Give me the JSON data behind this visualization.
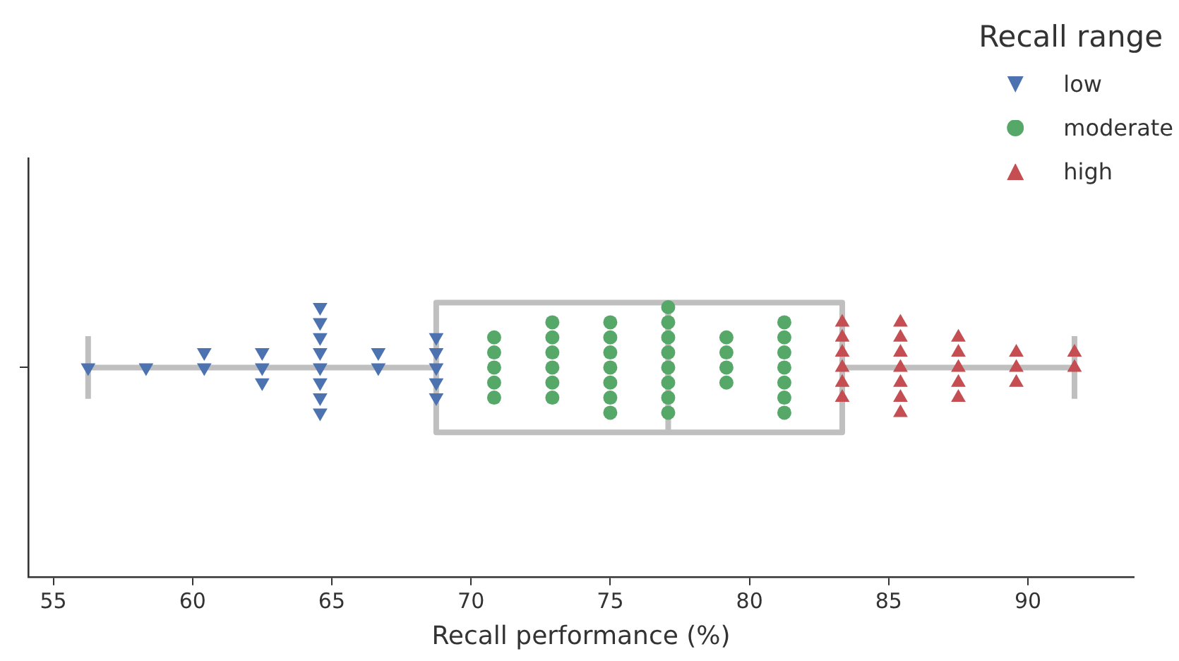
{
  "chart_data": {
    "type": "box",
    "orientation": "horizontal",
    "xlabel": "Recall performance (%)",
    "legend_title": "Recall range",
    "legend": "top right",
    "grid": false,
    "categories": [
      null
    ],
    "boxes": [
      {
        "low": 56.25,
        "q1": 68.75,
        "median": 77.08,
        "q3": 83.33,
        "high": 91.67
      }
    ],
    "color": "#bfbfbf",
    "xlim": [
      54.1,
      93.8
    ],
    "xticks": [
      55,
      60,
      65,
      70,
      75,
      80,
      85,
      90
    ],
    "series": [
      {
        "name": "low",
        "type": "scatter",
        "marker": "triangle-down",
        "color": "#4c72b0",
        "x": [
          null,
          null,
          null,
          null,
          null,
          null,
          null,
          null,
          null,
          null,
          null,
          null,
          null,
          null,
          null,
          null,
          null,
          null,
          null,
          null,
          null,
          null
        ],
        "values": [
          56.25,
          58.33,
          60.42,
          60.42,
          62.5,
          62.5,
          62.5,
          64.58,
          64.58,
          64.58,
          64.58,
          64.58,
          64.58,
          64.58,
          64.58,
          66.67,
          66.67,
          68.75,
          68.75,
          68.75,
          68.75,
          68.75
        ]
      },
      {
        "name": "moderate",
        "type": "scatter",
        "marker": "circle",
        "color": "#55a868",
        "x": [
          null,
          null,
          null,
          null,
          null,
          null,
          null,
          null,
          null,
          null,
          null,
          null,
          null,
          null,
          null,
          null,
          null,
          null,
          null,
          null,
          null,
          null,
          null,
          null,
          null,
          null,
          null,
          null,
          null,
          null,
          null,
          null,
          null,
          null,
          null,
          null,
          null
        ],
        "values": [
          70.83,
          70.83,
          70.83,
          70.83,
          70.83,
          72.92,
          72.92,
          72.92,
          72.92,
          72.92,
          72.92,
          75,
          75,
          75,
          75,
          75,
          75,
          75,
          77.08,
          77.08,
          77.08,
          77.08,
          77.08,
          77.08,
          77.08,
          77.08,
          79.17,
          79.17,
          79.17,
          79.17,
          81.25,
          81.25,
          81.25,
          81.25,
          81.25,
          81.25,
          81.25
        ]
      },
      {
        "name": "high",
        "type": "scatter",
        "marker": "triangle",
        "color": "#c44e52",
        "x": [
          null,
          null,
          null,
          null,
          null,
          null,
          null,
          null,
          null,
          null,
          null,
          null,
          null,
          null,
          null,
          null,
          null,
          null,
          null,
          null,
          null,
          null,
          null
        ],
        "values": [
          83.33,
          83.33,
          83.33,
          83.33,
          83.33,
          83.33,
          85.42,
          85.42,
          85.42,
          85.42,
          85.42,
          85.42,
          85.42,
          87.5,
          87.5,
          87.5,
          87.5,
          87.5,
          89.58,
          89.58,
          89.58,
          91.67,
          91.67
        ]
      }
    ]
  }
}
